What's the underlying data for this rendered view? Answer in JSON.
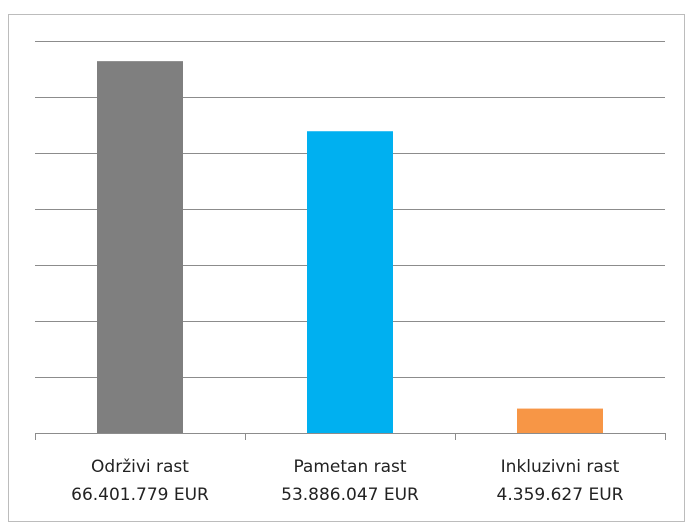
{
  "chart_data": {
    "type": "bar",
    "categories": [
      "Održivi rast",
      "Pametan rast",
      "Inkluzivni rast"
    ],
    "values": [
      66401779,
      53886047,
      4359627
    ],
    "value_labels": [
      "66.401.779 EUR",
      "53.886.047 EUR",
      "4.359.627 EUR"
    ],
    "colors": [
      "#7f7f7f",
      "#00b0f0",
      "#f79646"
    ],
    "ylim": [
      0,
      70000000
    ],
    "yticks": [
      0,
      10000000,
      20000000,
      30000000,
      40000000,
      50000000,
      60000000,
      70000000
    ],
    "grid": true
  }
}
